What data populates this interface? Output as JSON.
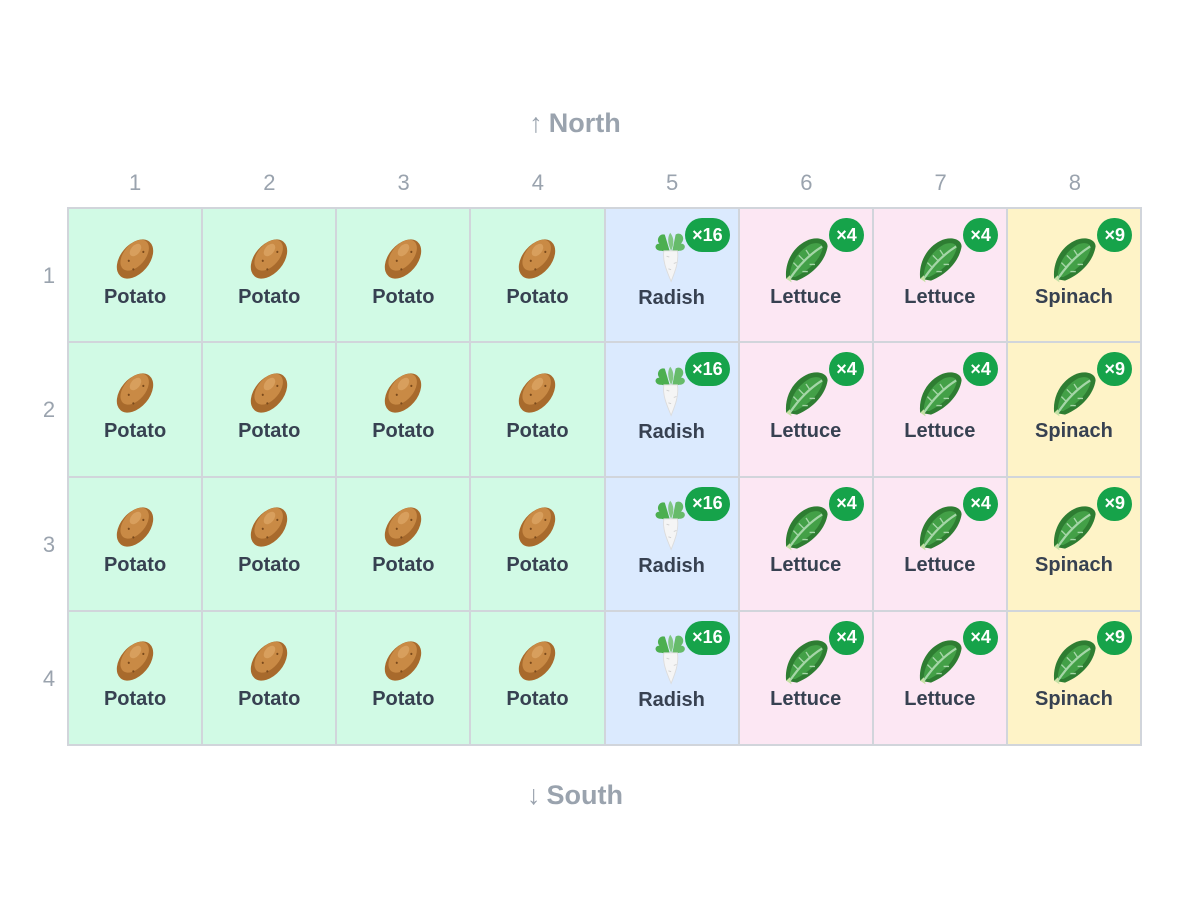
{
  "compass": {
    "north_arrow": "↑",
    "north_label": "North",
    "south_arrow": "↓",
    "south_label": "South"
  },
  "columns": [
    "1",
    "2",
    "3",
    "4",
    "5",
    "6",
    "7",
    "8"
  ],
  "rows": [
    "1",
    "2",
    "3",
    "4"
  ],
  "crops": {
    "potato": {
      "label": "Potato",
      "color": "#d1fae5",
      "icon": "potato-icon",
      "badge": ""
    },
    "radish": {
      "label": "Radish",
      "color": "#dbeafe",
      "icon": "radish-icon",
      "badge": "×16"
    },
    "lettuce": {
      "label": "Lettuce",
      "color": "#fce7f3",
      "icon": "lettuce-icon",
      "badge": "×4"
    },
    "spinach": {
      "label": "Spinach",
      "color": "#fef3c7",
      "icon": "spinach-icon",
      "badge": "×9"
    }
  },
  "grid": [
    [
      "potato",
      "potato",
      "potato",
      "potato",
      "radish",
      "lettuce",
      "lettuce",
      "spinach"
    ],
    [
      "potato",
      "potato",
      "potato",
      "potato",
      "radish",
      "lettuce",
      "lettuce",
      "spinach"
    ],
    [
      "potato",
      "potato",
      "potato",
      "potato",
      "radish",
      "lettuce",
      "lettuce",
      "spinach"
    ],
    [
      "potato",
      "potato",
      "potato",
      "potato",
      "radish",
      "lettuce",
      "lettuce",
      "spinach"
    ]
  ],
  "badge_color": "#16a34a"
}
